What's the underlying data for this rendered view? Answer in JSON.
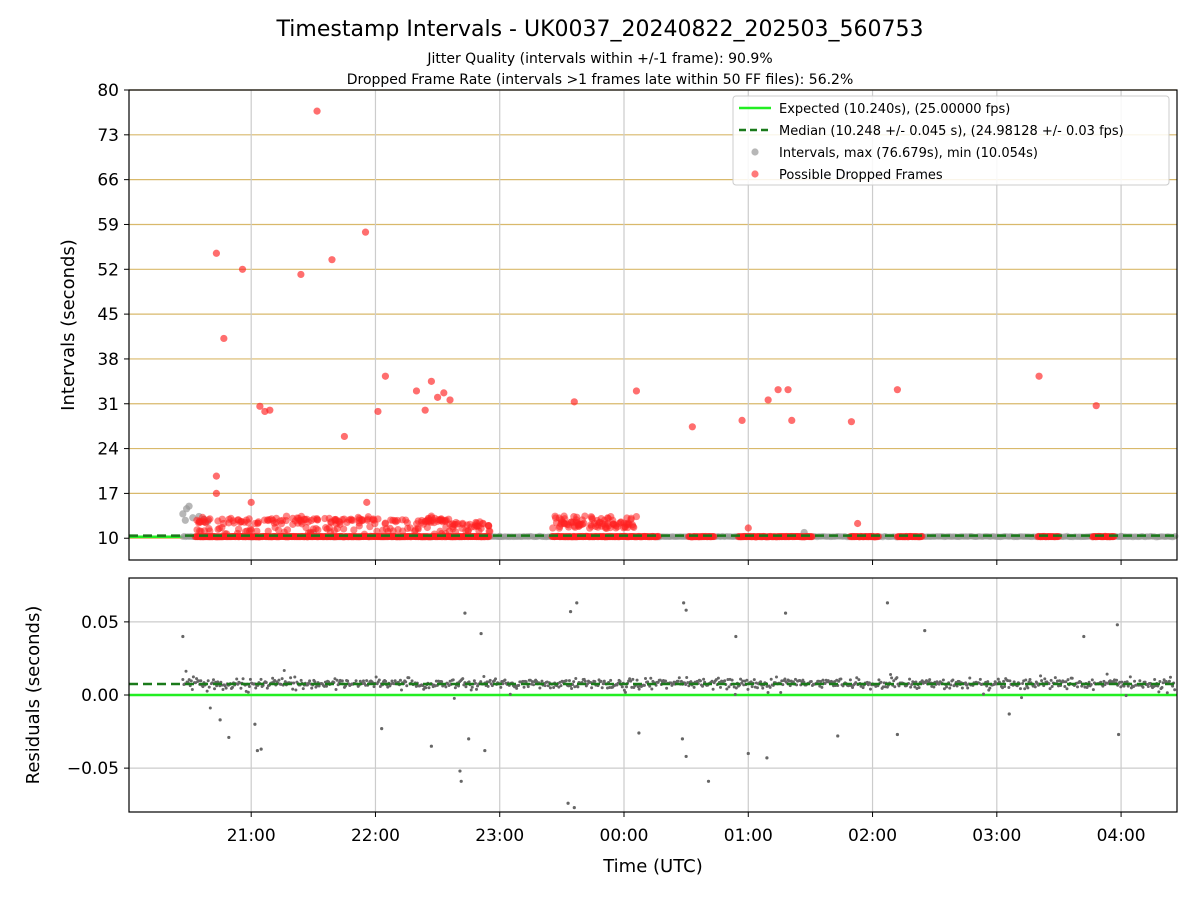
{
  "title": "Timestamp Intervals - UK0037_20240822_202503_560753",
  "subtitle1": "Jitter Quality (intervals within +/-1 frame): 90.9%",
  "subtitle2": "Dropped Frame Rate (intervals >1 frames late within 50 FF files): 56.2%",
  "colors": {
    "expected": "#22ee22",
    "median": "#1a7a1a",
    "intervals": "#999999",
    "dropped": "#ff2020",
    "residuals": "#666666",
    "hgrid_top": "#d9b96b",
    "grid": "#cccccc"
  },
  "chart_data": [
    {
      "type": "scatter",
      "title": "Intervals",
      "xlabel": "",
      "ylabel": "Intervals (seconds)",
      "x_ticks": [
        "21:00",
        "22:00",
        "23:00",
        "00:00",
        "01:00",
        "02:00",
        "03:00",
        "04:00"
      ],
      "x_tick_hours": [
        21,
        22,
        23,
        24,
        25,
        26,
        27,
        28
      ],
      "xlim_hours": [
        20.0167,
        28.45
      ],
      "ylim": [
        6.6,
        80
      ],
      "y_ticks": [
        10,
        17,
        24,
        31,
        38,
        45,
        52,
        59,
        66,
        73,
        80
      ],
      "grid": true,
      "legend_position": "top-right",
      "legend": [
        "Expected (10.240s), (25.00000 fps)",
        "Median (10.248 +/- 0.045 s), (24.98128 +/- 0.03 fps)",
        "Intervals, max (76.679s), min (10.054s)",
        "Possible Dropped Frames"
      ],
      "expected_value": 10.24,
      "median_value": 10.248,
      "interval_points_sample": [
        {
          "x": 20.45,
          "y": 13.8
        },
        {
          "x": 20.48,
          "y": 14.6
        },
        {
          "x": 20.5,
          "y": 15.0
        },
        {
          "x": 20.47,
          "y": 12.8
        },
        {
          "x": 20.53,
          "y": 13.2
        },
        {
          "x": 20.58,
          "y": 13.4
        },
        {
          "x": 20.62,
          "y": 13.0
        },
        {
          "x": 20.65,
          "y": 12.6
        },
        {
          "x": 21.5,
          "y": 10.9
        },
        {
          "x": 23.0,
          "y": 10.3
        },
        {
          "x": 24.0,
          "y": 10.3
        },
        {
          "x": 25.45,
          "y": 10.9
        },
        {
          "x": 26.0,
          "y": 10.3
        },
        {
          "x": 28.0,
          "y": 10.3
        }
      ],
      "dropped_points_sample": [
        {
          "x": 20.72,
          "y": 54.5
        },
        {
          "x": 20.78,
          "y": 41.2
        },
        {
          "x": 20.93,
          "y": 52.0
        },
        {
          "x": 21.07,
          "y": 30.6
        },
        {
          "x": 21.11,
          "y": 29.8
        },
        {
          "x": 21.15,
          "y": 30.0
        },
        {
          "x": 21.4,
          "y": 51.2
        },
        {
          "x": 21.53,
          "y": 76.7
        },
        {
          "x": 21.65,
          "y": 53.5
        },
        {
          "x": 21.75,
          "y": 25.9
        },
        {
          "x": 21.92,
          "y": 57.8
        },
        {
          "x": 22.02,
          "y": 29.8
        },
        {
          "x": 22.08,
          "y": 35.3
        },
        {
          "x": 22.33,
          "y": 33.0
        },
        {
          "x": 22.4,
          "y": 30.0
        },
        {
          "x": 22.45,
          "y": 34.5
        },
        {
          "x": 22.5,
          "y": 32.0
        },
        {
          "x": 22.55,
          "y": 32.7
        },
        {
          "x": 22.6,
          "y": 31.6
        },
        {
          "x": 23.6,
          "y": 31.3
        },
        {
          "x": 24.1,
          "y": 33.0
        },
        {
          "x": 24.55,
          "y": 27.4
        },
        {
          "x": 24.95,
          "y": 28.4
        },
        {
          "x": 25.16,
          "y": 31.6
        },
        {
          "x": 25.24,
          "y": 33.2
        },
        {
          "x": 25.32,
          "y": 33.2
        },
        {
          "x": 25.35,
          "y": 28.4
        },
        {
          "x": 25.83,
          "y": 28.2
        },
        {
          "x": 26.2,
          "y": 33.2
        },
        {
          "x": 27.34,
          "y": 35.3
        },
        {
          "x": 27.8,
          "y": 30.7
        },
        {
          "x": 20.72,
          "y": 19.7
        },
        {
          "x": 20.72,
          "y": 17.0
        },
        {
          "x": 21.0,
          "y": 15.6
        },
        {
          "x": 21.93,
          "y": 15.6
        },
        {
          "x": 25.0,
          "y": 11.6
        },
        {
          "x": 25.88,
          "y": 12.3
        }
      ],
      "dropped_dense_segments_hours": [
        [
          20.55,
          22.92
        ],
        [
          23.42,
          24.28
        ],
        [
          24.52,
          24.73
        ],
        [
          24.92,
          25.52
        ],
        [
          25.82,
          26.05
        ],
        [
          26.2,
          26.4
        ],
        [
          27.33,
          27.5
        ],
        [
          27.77,
          27.95
        ]
      ],
      "dropped_cluster_hours": [
        20.55,
        22.95
      ],
      "dropped_cluster_y_range": [
        12.0,
        15.0
      ],
      "dropped_cluster2_hours": [
        23.42,
        24.1
      ],
      "dropped_cluster2_y_range": [
        11.5,
        13.5
      ]
    },
    {
      "type": "scatter",
      "title": "Residuals",
      "xlabel": "Time (UTC)",
      "ylabel": "Residuals (seconds)",
      "x_ticks": [
        "21:00",
        "22:00",
        "23:00",
        "00:00",
        "01:00",
        "02:00",
        "03:00",
        "04:00"
      ],
      "ylim": [
        -0.08,
        0.08
      ],
      "y_tick_values": [
        0.05,
        0.0,
        -0.05
      ],
      "y_ticks": [
        "0.05",
        "0.00",
        "−0.05"
      ],
      "grid": true,
      "expected_value": 0.0,
      "median_value": 0.0075,
      "residual_core_range": [
        -0.002,
        0.018
      ],
      "residual_outliers_sample": [
        {
          "x": 20.45,
          "y": 0.04
        },
        {
          "x": 20.75,
          "y": -0.017
        },
        {
          "x": 20.82,
          "y": -0.029
        },
        {
          "x": 21.03,
          "y": -0.02
        },
        {
          "x": 21.05,
          "y": -0.038
        },
        {
          "x": 21.08,
          "y": -0.037
        },
        {
          "x": 22.05,
          "y": -0.023
        },
        {
          "x": 22.45,
          "y": -0.035
        },
        {
          "x": 22.68,
          "y": -0.052
        },
        {
          "x": 22.69,
          "y": -0.059
        },
        {
          "x": 22.72,
          "y": 0.056
        },
        {
          "x": 22.75,
          "y": -0.03
        },
        {
          "x": 22.85,
          "y": 0.042
        },
        {
          "x": 22.88,
          "y": -0.038
        },
        {
          "x": 23.55,
          "y": -0.074
        },
        {
          "x": 23.6,
          "y": -0.077
        },
        {
          "x": 23.62,
          "y": 0.063
        },
        {
          "x": 23.57,
          "y": 0.057
        },
        {
          "x": 24.12,
          "y": -0.026
        },
        {
          "x": 24.47,
          "y": -0.03
        },
        {
          "x": 24.5,
          "y": -0.042
        },
        {
          "x": 24.48,
          "y": 0.063
        },
        {
          "x": 24.5,
          "y": 0.058
        },
        {
          "x": 24.68,
          "y": -0.059
        },
        {
          "x": 24.9,
          "y": 0.04
        },
        {
          "x": 25.0,
          "y": -0.04
        },
        {
          "x": 25.15,
          "y": -0.043
        },
        {
          "x": 25.3,
          "y": 0.056
        },
        {
          "x": 25.72,
          "y": -0.028
        },
        {
          "x": 26.12,
          "y": 0.063
        },
        {
          "x": 26.2,
          "y": -0.027
        },
        {
          "x": 26.42,
          "y": 0.044
        },
        {
          "x": 27.7,
          "y": 0.04
        },
        {
          "x": 27.97,
          "y": 0.048
        },
        {
          "x": 27.98,
          "y": -0.027
        },
        {
          "x": 27.1,
          "y": -0.013
        }
      ]
    }
  ]
}
